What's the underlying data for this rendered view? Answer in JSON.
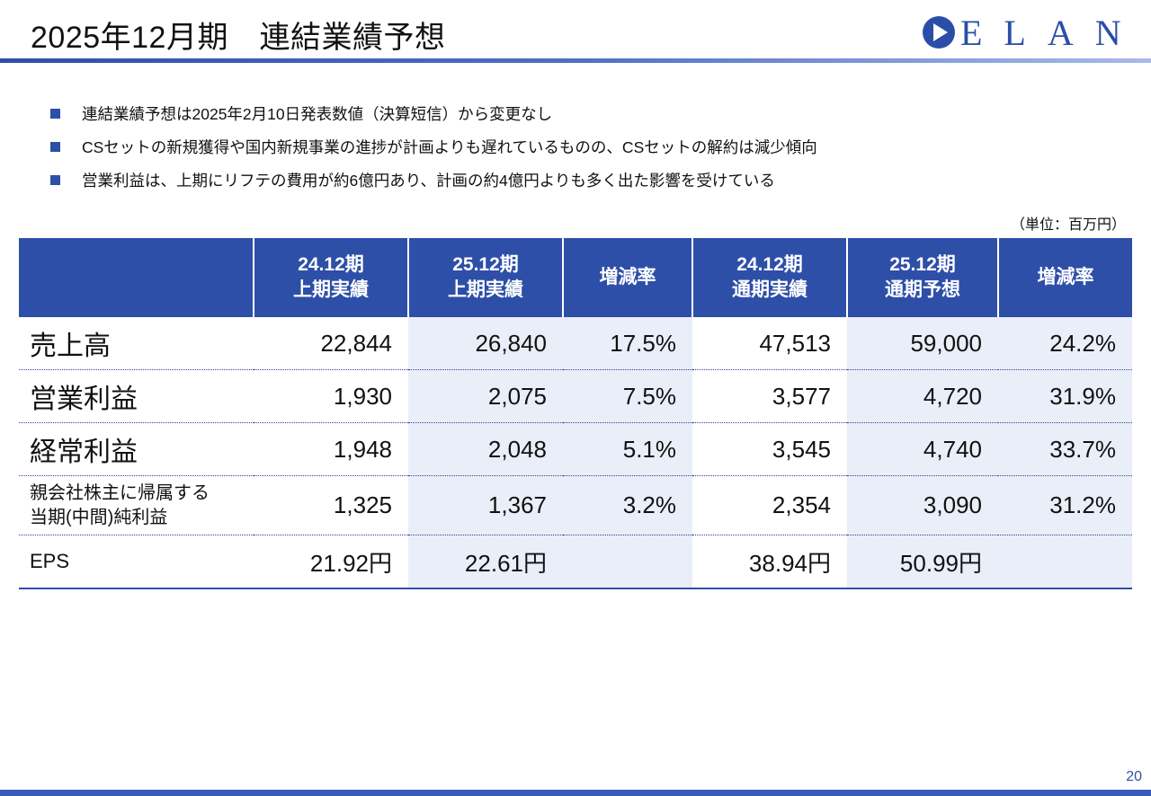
{
  "page": {
    "title": "2025年12月期　連結業績予想",
    "logo_text": "ELAN",
    "page_number": "20",
    "colors": {
      "primary": "#2e4fa8",
      "shade": "#e9eef9"
    }
  },
  "bullets": [
    "連結業績予想は2025年2月10日発表数値（決算短信）から変更なし",
    "CSセットの新規獲得や国内新規事業の進捗が計画よりも遅れているものの、CSセットの解約は減少傾向",
    "営業利益は、上期にリフテの費用が約6億円あり、計画の約4億円よりも多く出た影響を受けている"
  ],
  "unit_note": "（単位：百万円）",
  "table": {
    "headers": [
      {
        "line1": "24.12期",
        "line2": "上期実績"
      },
      {
        "line1": "25.12期",
        "line2": "上期実績"
      },
      {
        "line1": "増減率",
        "line2": ""
      },
      {
        "line1": "24.12期",
        "line2": "通期実績"
      },
      {
        "line1": "25.12期",
        "line2": "通期予想"
      },
      {
        "line1": "増減率",
        "line2": ""
      }
    ],
    "rows": [
      {
        "label1": "売上高",
        "label2": "",
        "values": [
          "22,844",
          "26,840",
          "17.5%",
          "47,513",
          "59,000",
          "24.2%"
        ]
      },
      {
        "label1": "営業利益",
        "label2": "",
        "values": [
          "1,930",
          "2,075",
          "7.5%",
          "3,577",
          "4,720",
          "31.9%"
        ]
      },
      {
        "label1": "経常利益",
        "label2": "",
        "values": [
          "1,948",
          "2,048",
          "5.1%",
          "3,545",
          "4,740",
          "33.7%"
        ]
      },
      {
        "label1": "親会社株主に帰属する",
        "label2": "当期(中間)純利益",
        "values": [
          "1,325",
          "1,367",
          "3.2%",
          "2,354",
          "3,090",
          "31.2%"
        ]
      },
      {
        "label1": "EPS",
        "label2": "",
        "values": [
          "21.92円",
          "22.61円",
          "",
          "38.94円",
          "50.99円",
          ""
        ]
      }
    ]
  }
}
